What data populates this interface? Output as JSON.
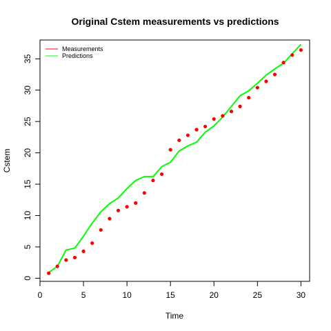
{
  "chart_data": {
    "type": "line",
    "title": "Original Cstem measurements vs predictions",
    "xlabel": "Time",
    "ylabel": "Cstem",
    "xlim": [
      0,
      31
    ],
    "ylim": [
      -0.5,
      38
    ],
    "x_ticks": [
      0,
      5,
      10,
      15,
      20,
      25,
      30
    ],
    "y_ticks": [
      0,
      5,
      10,
      15,
      20,
      25,
      30,
      35
    ],
    "grid": false,
    "legend_position": "top-left",
    "x": [
      1,
      2,
      3,
      4,
      5,
      6,
      7,
      8,
      9,
      10,
      11,
      12,
      13,
      14,
      15,
      16,
      17,
      18,
      19,
      20,
      21,
      22,
      23,
      24,
      25,
      26,
      27,
      28,
      29,
      30
    ],
    "series": [
      {
        "name": "Measurements",
        "style": "points",
        "color": "#ff0000",
        "values": [
          0.8,
          1.9,
          2.9,
          3.3,
          4.3,
          5.6,
          7.7,
          9.5,
          10.8,
          11.4,
          12.0,
          13.6,
          15.6,
          16.6,
          20.5,
          22.0,
          22.8,
          23.7,
          24.2,
          25.4,
          25.9,
          26.6,
          27.4,
          28.8,
          30.4,
          31.4,
          32.5,
          34.4,
          35.6,
          36.4
        ]
      },
      {
        "name": "Predictions",
        "style": "line",
        "color": "#00ff00",
        "values": [
          0.9,
          1.9,
          4.5,
          4.8,
          6.7,
          8.8,
          10.6,
          11.9,
          12.8,
          14.3,
          15.6,
          16.2,
          16.2,
          17.8,
          18.5,
          20.3,
          21.1,
          21.7,
          23.3,
          24.3,
          25.7,
          27.4,
          29.1,
          29.9,
          31.1,
          32.4,
          33.4,
          34.3,
          35.8,
          37.3
        ]
      }
    ]
  }
}
